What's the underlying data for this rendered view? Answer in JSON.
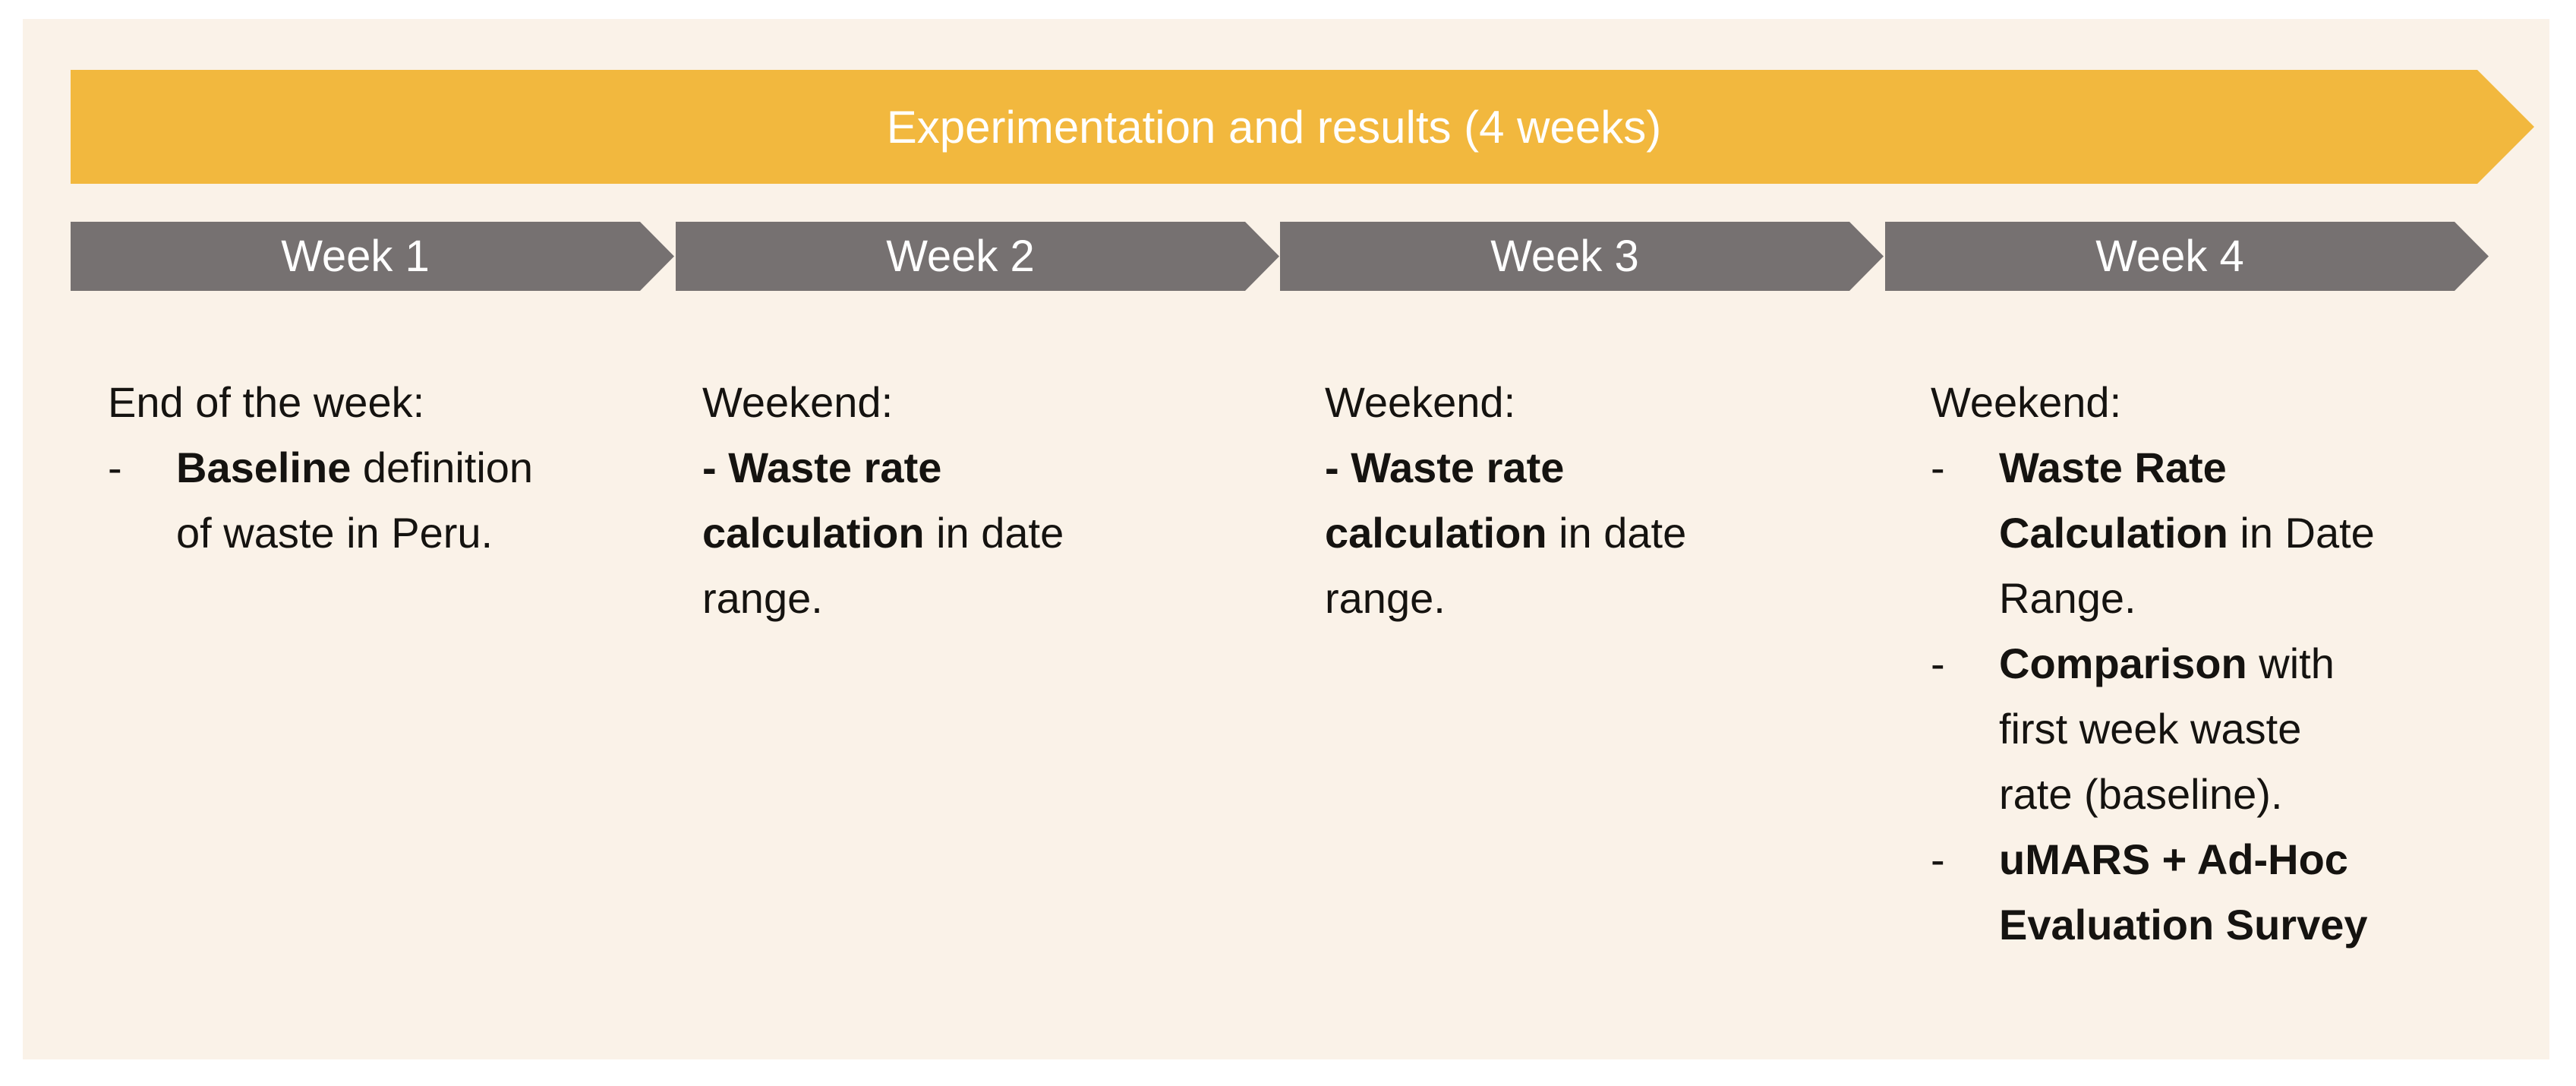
{
  "colors": {
    "page_background": "#FFFFFF",
    "panel_background": "#FAF2E8",
    "banner_fill": "#F2B83E",
    "week_arrow_fill": "#767171",
    "banner_text": "#FFFFFF",
    "body_text": "#151310"
  },
  "banner": {
    "label": "Experimentation and results (4 weeks)"
  },
  "weeks": [
    {
      "label": "Week 1"
    },
    {
      "label": "Week 2"
    },
    {
      "label": "Week 3"
    },
    {
      "label": "Week 4"
    }
  ],
  "columns": [
    {
      "heading": "End of the week:",
      "bullet_style": "hanging",
      "bullet_char": "-",
      "items": [
        {
          "lines": [
            [
              {
                "t": "Baseline",
                "b": true
              },
              {
                "t": " definition",
                "b": false
              }
            ],
            [
              {
                "t": "of waste in Peru.",
                "b": false
              }
            ]
          ]
        }
      ]
    },
    {
      "heading": "Weekend:",
      "bullet_style": "flush",
      "bullet_char": "",
      "items": [
        {
          "lines": [
            [
              {
                "t": "- Waste rate",
                "b": true
              }
            ],
            [
              {
                "t": "calculation",
                "b": true
              },
              {
                "t": " in date",
                "b": false
              }
            ],
            [
              {
                "t": "range.",
                "b": false
              }
            ]
          ]
        }
      ]
    },
    {
      "heading": "Weekend:",
      "bullet_style": "flush",
      "bullet_char": "",
      "items": [
        {
          "lines": [
            [
              {
                "t": "- Waste rate",
                "b": true
              }
            ],
            [
              {
                "t": "calculation",
                "b": true
              },
              {
                "t": " in date",
                "b": false
              }
            ],
            [
              {
                "t": "range.",
                "b": false
              }
            ]
          ]
        }
      ]
    },
    {
      "heading": "Weekend:",
      "bullet_style": "hanging",
      "bullet_char": "-",
      "items": [
        {
          "lines": [
            [
              {
                "t": "Waste Rate",
                "b": true
              }
            ],
            [
              {
                "t": "Calculation",
                "b": true
              },
              {
                "t": " in Date",
                "b": false
              }
            ],
            [
              {
                "t": "Range.",
                "b": false
              }
            ]
          ]
        },
        {
          "lines": [
            [
              {
                "t": "Comparison",
                "b": true
              },
              {
                "t": " with",
                "b": false
              }
            ],
            [
              {
                "t": "first week waste",
                "b": false
              }
            ],
            [
              {
                "t": "rate (baseline).",
                "b": false
              }
            ]
          ]
        },
        {
          "lines": [
            [
              {
                "t": "uMARS + Ad-Hoc",
                "b": true
              }
            ],
            [
              {
                "t": "Evaluation Survey",
                "b": true
              }
            ]
          ]
        }
      ]
    }
  ]
}
